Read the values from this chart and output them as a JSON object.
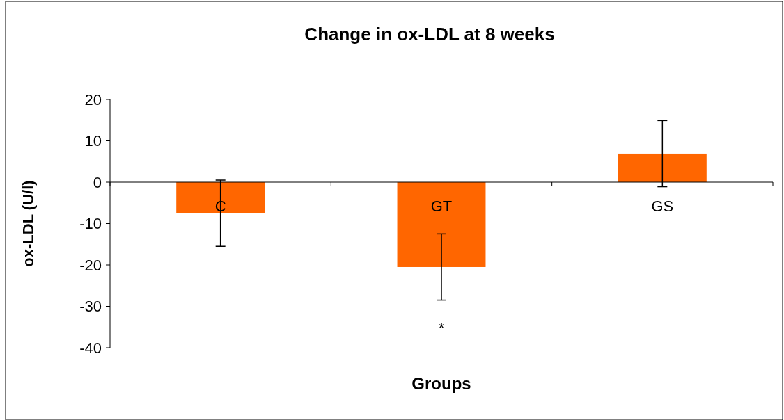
{
  "chart_data": {
    "type": "bar",
    "title": "Change in ox-LDL at 8 weeks",
    "xlabel": "Groups",
    "ylabel": "ox-LDL (U/l)",
    "categories": [
      "C",
      "GT",
      "GS"
    ],
    "values": [
      -7.5,
      -20.5,
      6.9
    ],
    "errors": [
      8,
      8,
      8
    ],
    "color": "#ff6600",
    "ylim": [
      -40,
      20
    ],
    "yticks": [
      -40,
      -30,
      -20,
      -10,
      0,
      10,
      20
    ],
    "grid": false,
    "annotations": [
      "*"
    ]
  }
}
